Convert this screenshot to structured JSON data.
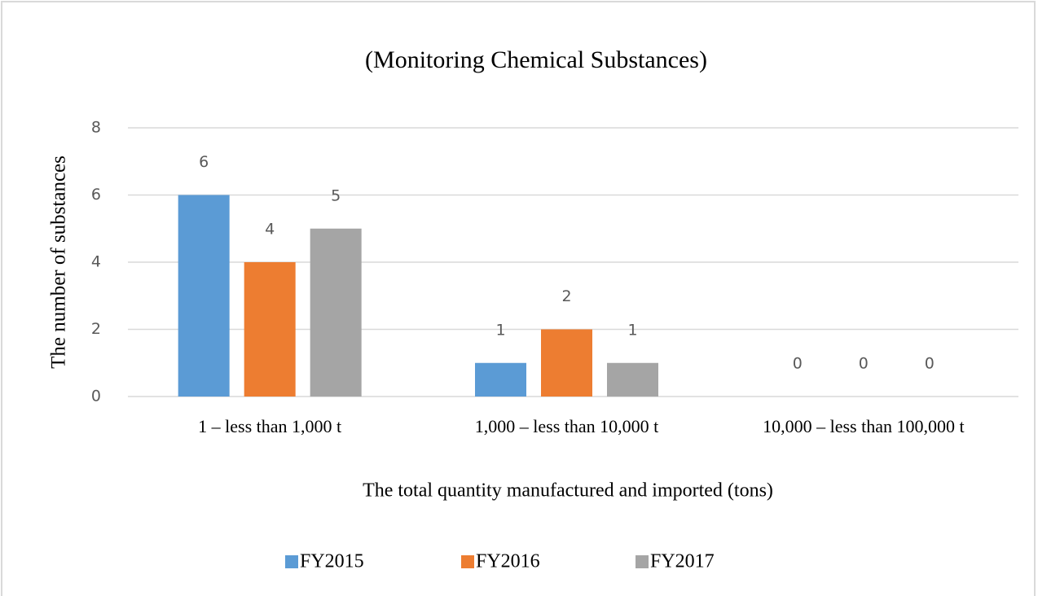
{
  "chart_data": {
    "type": "bar",
    "title": "(Monitoring Chemical Substances)",
    "x_label": "The total quantity manufactured and imported (tons)",
    "y_label": "The number of substances",
    "categories": [
      "1 – less than 1,000 t",
      "1,000 – less than 10,000 t",
      "10,000 – less than 100,000 t"
    ],
    "series": [
      {
        "name": "FY2015",
        "color": "#5b9bd5",
        "values": [
          6,
          1,
          0
        ]
      },
      {
        "name": "FY2016",
        "color": "#ed7d31",
        "values": [
          4,
          2,
          0
        ]
      },
      {
        "name": "FY2017",
        "color": "#a5a5a5",
        "values": [
          5,
          1,
          0
        ]
      }
    ],
    "ylim": [
      0,
      8
    ],
    "yticks": [
      0,
      2,
      4,
      6,
      8
    ],
    "grid": true,
    "legend": "bottom"
  }
}
